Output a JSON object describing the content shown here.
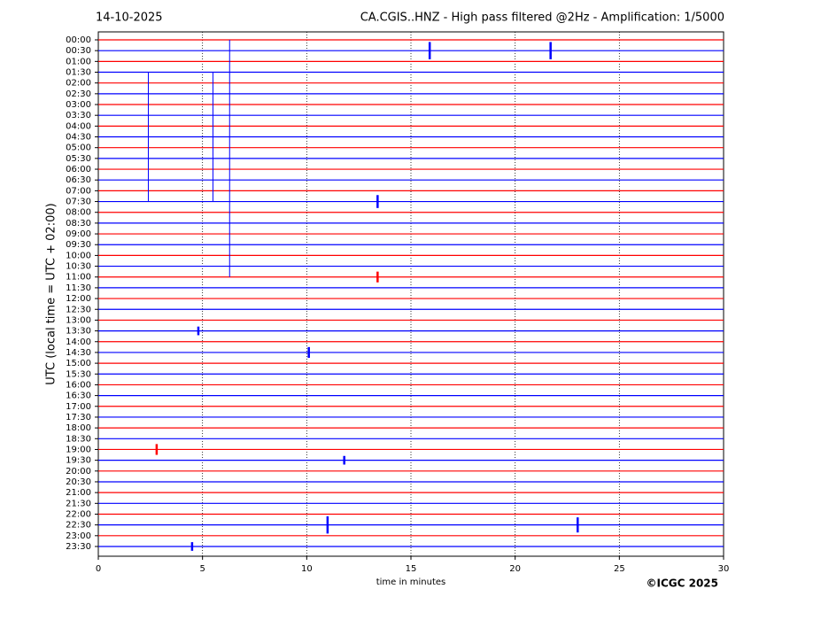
{
  "chart_data": {
    "type": "helicorder",
    "date": "14-10-2025",
    "title": "CA.CGIS..HNZ - High pass filtered @2Hz - Amplification: 1/5000",
    "ylabel": "UTC (local time = UTC + 02:00)",
    "xlabel": "time in minutes",
    "credit": "©ICGC 2025",
    "rows": [
      "00:00",
      "00:30",
      "01:00",
      "01:30",
      "02:00",
      "02:30",
      "03:00",
      "03:30",
      "04:00",
      "04:30",
      "05:00",
      "05:30",
      "06:00",
      "06:30",
      "07:00",
      "07:30",
      "08:00",
      "08:30",
      "09:00",
      "09:30",
      "10:00",
      "10:30",
      "11:00",
      "11:30",
      "12:00",
      "12:30",
      "13:00",
      "13:30",
      "14:00",
      "14:30",
      "15:00",
      "15:30",
      "16:00",
      "16:30",
      "17:00",
      "17:30",
      "18:00",
      "18:30",
      "19:00",
      "19:30",
      "20:00",
      "20:30",
      "21:00",
      "21:30",
      "22:00",
      "22:30",
      "23:00",
      "23:30"
    ],
    "row_colors": [
      "#ff0000",
      "#0000ff"
    ],
    "xlim": [
      0,
      30
    ],
    "xticks": [
      0,
      5,
      10,
      15,
      20,
      25,
      30
    ],
    "grid": true,
    "events": [
      {
        "row": 1,
        "minute": 15.9,
        "amplitude": 0.8
      },
      {
        "row": 1,
        "minute": 21.7,
        "amplitude": 0.8
      },
      {
        "row": 9,
        "minute": 2.4,
        "amplitude": 6
      },
      {
        "row": 9,
        "minute": 5.5,
        "amplitude": 6
      },
      {
        "row": 11,
        "minute": 6.3,
        "amplitude": 11
      },
      {
        "row": 15,
        "minute": 13.4,
        "amplitude": 0.6
      },
      {
        "row": 22,
        "minute": 13.4,
        "amplitude": 0.5
      },
      {
        "row": 27,
        "minute": 4.8,
        "amplitude": 0.4
      },
      {
        "row": 29,
        "minute": 10.1,
        "amplitude": 0.5
      },
      {
        "row": 38,
        "minute": 2.8,
        "amplitude": 0.5
      },
      {
        "row": 39,
        "minute": 11.8,
        "amplitude": 0.4
      },
      {
        "row": 45,
        "minute": 11.0,
        "amplitude": 0.8
      },
      {
        "row": 45,
        "minute": 23.0,
        "amplitude": 0.7
      },
      {
        "row": 47,
        "minute": 4.5,
        "amplitude": 0.4
      }
    ]
  }
}
